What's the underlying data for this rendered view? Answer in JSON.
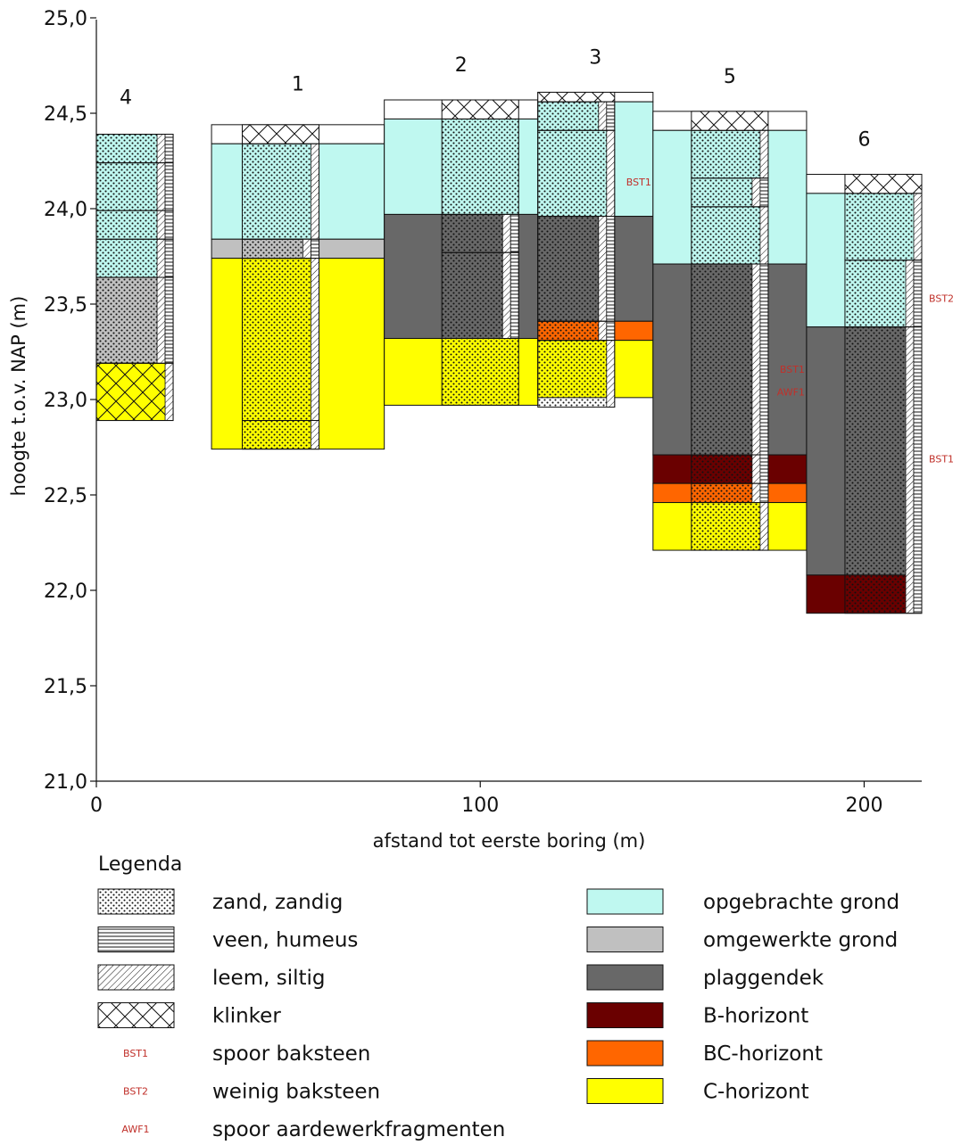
{
  "chart_data": {
    "type": "bar",
    "xlabel": "afstand tot eerste boring (m)",
    "ylabel": "hoogte t.o.v. NAP (m)",
    "xlim": [
      0,
      215
    ],
    "ylim": [
      21.0,
      25.0
    ],
    "x_ticks": [
      {
        "value": 0,
        "label": "0"
      },
      {
        "value": 100,
        "label": "100"
      },
      {
        "value": 200,
        "label": "200"
      }
    ],
    "y_ticks": [
      {
        "value": 21.0,
        "label": "21,0"
      },
      {
        "value": 21.5,
        "label": "21,5"
      },
      {
        "value": 22.0,
        "label": "22,0"
      },
      {
        "value": 22.5,
        "label": "22,5"
      },
      {
        "value": 23.0,
        "label": "23,0"
      },
      {
        "value": 23.5,
        "label": "23,5"
      },
      {
        "value": 24.0,
        "label": "24,0"
      },
      {
        "value": 24.5,
        "label": "24,5"
      },
      {
        "value": 25.0,
        "label": "25,0"
      }
    ],
    "borings": [
      {
        "label": "4",
        "column": [
          0,
          20
        ],
        "core": [
          0,
          20
        ],
        "label_y": 24.55,
        "horizons": [
          {
            "kind": "opgebrachte",
            "top": 24.39,
            "bottom": 23.64
          },
          {
            "kind": "omgewerkte",
            "top": 23.64,
            "bottom": 23.19
          },
          {
            "kind": "c",
            "top": 23.19,
            "bottom": 22.89
          }
        ],
        "layers": [
          {
            "top": 24.39,
            "bottom": 24.24,
            "lith": [
              "zand",
              "leem",
              "veen"
            ]
          },
          {
            "top": 24.24,
            "bottom": 23.99,
            "lith": [
              "zand",
              "leem",
              "veen"
            ]
          },
          {
            "top": 23.99,
            "bottom": 23.84,
            "lith": [
              "zand",
              "leem",
              "veen"
            ]
          },
          {
            "top": 23.84,
            "bottom": 23.64,
            "lith": [
              "zand",
              "leem",
              "veen"
            ]
          },
          {
            "top": 23.64,
            "bottom": 23.19,
            "lith": [
              "zand",
              "leem",
              "veen"
            ]
          },
          {
            "top": 23.19,
            "bottom": 22.89,
            "lith": [
              "klinker",
              "leem"
            ]
          }
        ],
        "notes": []
      },
      {
        "label": "1",
        "column": [
          30,
          75
        ],
        "core": [
          38,
          58
        ],
        "label_y": 24.62,
        "horizons": [
          {
            "kind": "opgebracht-wit",
            "top": 24.44,
            "bottom": 24.34
          },
          {
            "kind": "opgebrachte",
            "top": 24.34,
            "bottom": 23.84
          },
          {
            "kind": "omgewerkte",
            "top": 23.84,
            "bottom": 23.74
          },
          {
            "kind": "c",
            "top": 23.74,
            "bottom": 22.74
          }
        ],
        "layers": [
          {
            "top": 24.44,
            "bottom": 24.34,
            "lith": [
              "klinker"
            ]
          },
          {
            "top": 24.34,
            "bottom": 23.84,
            "lith": [
              "zand",
              "leem"
            ]
          },
          {
            "top": 23.84,
            "bottom": 23.74,
            "lith": [
              "zand",
              "leem",
              "veen"
            ]
          },
          {
            "top": 23.74,
            "bottom": 22.89,
            "lith": [
              "zand",
              "leem"
            ]
          },
          {
            "top": 22.89,
            "bottom": 22.74,
            "lith": [
              "zand",
              "leem"
            ]
          }
        ],
        "notes": []
      },
      {
        "label": "2",
        "column": [
          75,
          115
        ],
        "core": [
          90,
          110
        ],
        "label_y": 24.72,
        "horizons": [
          {
            "kind": "opgebracht-wit",
            "top": 24.57,
            "bottom": 24.47
          },
          {
            "kind": "opgebrachte",
            "top": 24.47,
            "bottom": 23.97
          },
          {
            "kind": "plaggendek",
            "top": 23.97,
            "bottom": 23.32
          },
          {
            "kind": "c",
            "top": 23.32,
            "bottom": 22.97
          }
        ],
        "layers": [
          {
            "top": 24.57,
            "bottom": 24.47,
            "lith": [
              "klinker"
            ]
          },
          {
            "top": 24.47,
            "bottom": 23.97,
            "lith": [
              "zand"
            ]
          },
          {
            "top": 23.97,
            "bottom": 23.77,
            "lith": [
              "zand",
              "leem",
              "veen"
            ]
          },
          {
            "top": 23.77,
            "bottom": 23.32,
            "lith": [
              "zand",
              "leem",
              "veen"
            ]
          },
          {
            "top": 23.32,
            "bottom": 22.97,
            "lith": [
              "zand"
            ]
          }
        ],
        "notes": []
      },
      {
        "label": "3",
        "column": [
          115,
          145
        ],
        "core": [
          115,
          135
        ],
        "label_y": 24.76,
        "horizons": [
          {
            "kind": "opgebracht-wit",
            "top": 24.61,
            "bottom": 24.56
          },
          {
            "kind": "opgebrachte",
            "top": 24.56,
            "bottom": 23.96
          },
          {
            "kind": "plaggendek",
            "top": 23.96,
            "bottom": 23.41
          },
          {
            "kind": "bc",
            "top": 23.41,
            "bottom": 23.31
          },
          {
            "kind": "c",
            "top": 23.31,
            "bottom": 23.01
          }
        ],
        "layers": [
          {
            "top": 24.61,
            "bottom": 24.56,
            "lith": [
              "klinker"
            ]
          },
          {
            "top": 24.56,
            "bottom": 24.41,
            "lith": [
              "zand",
              "leem",
              "veen"
            ]
          },
          {
            "top": 24.41,
            "bottom": 23.96,
            "lith": [
              "zand",
              "leem"
            ]
          },
          {
            "top": 23.96,
            "bottom": 23.41,
            "lith": [
              "zand",
              "leem",
              "veen"
            ]
          },
          {
            "top": 23.41,
            "bottom": 23.31,
            "lith": [
              "zand",
              "leem",
              "veen"
            ]
          },
          {
            "top": 23.31,
            "bottom": 22.96,
            "lith": [
              "zand",
              "leem"
            ]
          }
        ],
        "notes": [
          {
            "code": "BST1",
            "y": 24.14
          }
        ]
      },
      {
        "label": "5",
        "column": [
          145,
          185
        ],
        "core": [
          155,
          175
        ],
        "label_y": 24.66,
        "horizons": [
          {
            "kind": "opgebracht-wit",
            "top": 24.51,
            "bottom": 24.41
          },
          {
            "kind": "opgebrachte",
            "top": 24.41,
            "bottom": 23.71
          },
          {
            "kind": "plaggendek",
            "top": 23.71,
            "bottom": 22.71
          },
          {
            "kind": "b",
            "top": 22.71,
            "bottom": 22.56
          },
          {
            "kind": "bc",
            "top": 22.56,
            "bottom": 22.46
          },
          {
            "kind": "c",
            "top": 22.46,
            "bottom": 22.21
          }
        ],
        "layers": [
          {
            "top": 24.51,
            "bottom": 24.41,
            "lith": [
              "klinker"
            ]
          },
          {
            "top": 24.41,
            "bottom": 24.16,
            "lith": [
              "zand",
              "leem"
            ]
          },
          {
            "top": 24.16,
            "bottom": 24.01,
            "lith": [
              "zand",
              "leem",
              "veen"
            ]
          },
          {
            "top": 24.01,
            "bottom": 23.71,
            "lith": [
              "zand",
              "leem"
            ]
          },
          {
            "top": 23.71,
            "bottom": 22.71,
            "lith": [
              "zand",
              "leem",
              "veen"
            ]
          },
          {
            "top": 22.71,
            "bottom": 22.56,
            "lith": [
              "zand",
              "leem",
              "veen"
            ]
          },
          {
            "top": 22.56,
            "bottom": 22.46,
            "lith": [
              "zand",
              "leem",
              "veen"
            ]
          },
          {
            "top": 22.46,
            "bottom": 22.21,
            "lith": [
              "zand",
              "leem"
            ]
          }
        ],
        "notes": [
          {
            "code": "BST1",
            "y": 23.16
          },
          {
            "code": "AWF1",
            "y": 23.04
          }
        ]
      },
      {
        "label": "6",
        "column": [
          185,
          215
        ],
        "core": [
          195,
          215
        ],
        "label_y": 24.33,
        "horizons": [
          {
            "kind": "opgebracht-wit",
            "top": 24.18,
            "bottom": 24.08
          },
          {
            "kind": "opgebrachte",
            "top": 24.08,
            "bottom": 23.38
          },
          {
            "kind": "plaggendek",
            "top": 23.38,
            "bottom": 22.08
          },
          {
            "kind": "b",
            "top": 22.08,
            "bottom": 21.88
          }
        ],
        "layers": [
          {
            "top": 24.18,
            "bottom": 24.08,
            "lith": [
              "klinker"
            ]
          },
          {
            "top": 24.08,
            "bottom": 23.73,
            "lith": [
              "zand",
              "leem"
            ]
          },
          {
            "top": 23.73,
            "bottom": 23.38,
            "lith": [
              "zand",
              "leem",
              "veen"
            ]
          },
          {
            "top": 23.38,
            "bottom": 21.88,
            "lith": [
              "zand",
              "leem",
              "veen"
            ]
          }
        ],
        "notes": [
          {
            "code": "BST2",
            "y": 23.53
          },
          {
            "code": "BST1",
            "y": 22.69
          }
        ]
      }
    ]
  },
  "horizon_colors": {
    "opgebracht-wit": "#ffffff",
    "opgebrachte": "#bff8f0",
    "omgewerkte": "#c0c0c0",
    "plaggendek": "#686868",
    "b": "#6a0000",
    "bc": "#ff6600",
    "c": "#ffff00"
  },
  "note_color": "#c0302a",
  "legend": {
    "title": "Legenda",
    "left": [
      {
        "pattern": "zand",
        "label": "zand, zandig"
      },
      {
        "pattern": "veen",
        "label": "veen, humeus"
      },
      {
        "pattern": "leem",
        "label": "leem, siltig"
      },
      {
        "pattern": "klinker",
        "label": "klinker"
      },
      {
        "code": "BST1",
        "label": "spoor baksteen"
      },
      {
        "code": "BST2",
        "label": "weinig baksteen"
      },
      {
        "code": "AWF1",
        "label": "spoor aardewerkfragmenten"
      }
    ],
    "right": [
      {
        "color": "#bff8f0",
        "label": "opgebrachte grond"
      },
      {
        "color": "#c0c0c0",
        "label": "omgewerkte grond"
      },
      {
        "color": "#686868",
        "label": "plaggendek"
      },
      {
        "color": "#6a0000",
        "label": "B-horizont"
      },
      {
        "color": "#ff6600",
        "label": "BC-horizont"
      },
      {
        "color": "#ffff00",
        "label": "C-horizont"
      }
    ]
  }
}
